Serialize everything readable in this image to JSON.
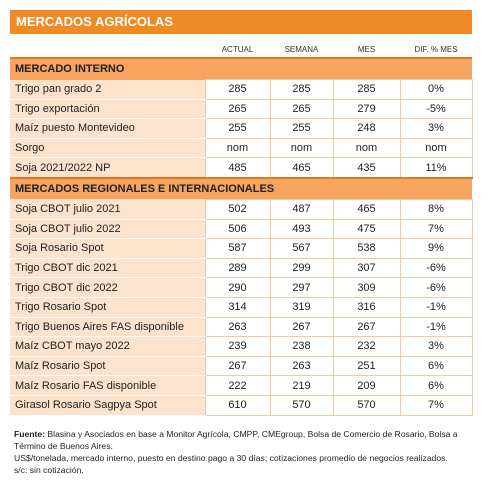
{
  "title": "MERCADOS AGRÍCOLAS",
  "columns": [
    "ACTUAL",
    "SEMANA",
    "MES",
    "DIF. % MES"
  ],
  "sections": [
    {
      "title": "MERCADO INTERNO",
      "rows": [
        [
          "Trigo pan grado 2",
          285,
          285,
          285,
          "0%"
        ],
        [
          "Trigo exportación",
          265,
          265,
          279,
          "-5%"
        ],
        [
          "Maíz puesto Montevideo",
          255,
          255,
          248,
          "3%"
        ],
        [
          "Sorgo",
          "nom",
          "nom",
          "nom",
          "nom"
        ],
        [
          "Soja 2021/2022 NP",
          485,
          465,
          435,
          "11%"
        ]
      ]
    },
    {
      "title": "MERCADOS REGIONALES E INTERNACIONALES",
      "rows": [
        [
          "Soja CBOT julio 2021",
          502,
          487,
          465,
          "8%"
        ],
        [
          "Soja CBOT julio 2022",
          506,
          493,
          475,
          "7%"
        ],
        [
          "Soja Rosario Spot",
          587,
          567,
          538,
          "9%"
        ],
        [
          "Trigo CBOT dic 2021",
          289,
          299,
          307,
          "-6%"
        ],
        [
          "Trigo CBOT dic 2022",
          290,
          297,
          309,
          "-6%"
        ],
        [
          "Trigo Rosario Spot",
          314,
          319,
          316,
          "-1%"
        ],
        [
          "Trigo Buenos Aires FAS disponible",
          263,
          267,
          267,
          "-1%"
        ],
        [
          "Maíz CBOT mayo 2022",
          239,
          238,
          232,
          "3%"
        ],
        [
          "Maíz Rosario Spot",
          267,
          263,
          251,
          "6%"
        ],
        [
          "Maíz Rosario FAS disponible",
          222,
          219,
          209,
          "6%"
        ],
        [
          "Girasol Rosario Sagpya Spot",
          610,
          570,
          570,
          "7%"
        ]
      ]
    }
  ],
  "footer": {
    "label": "Fuente:",
    "lines": [
      "Blasina y Asociados en base a Monitor Agrícola, CMPP, CMEgroup, Bolsa de Comercio de Rosario, Bolsa a Término de Buenos Aires.",
      "US$/tonelada, mercado interno, puesto en destino pago a 30 días; cotizaciones promedio de negocios realizados.",
      "s/c: sin cotización."
    ]
  }
}
